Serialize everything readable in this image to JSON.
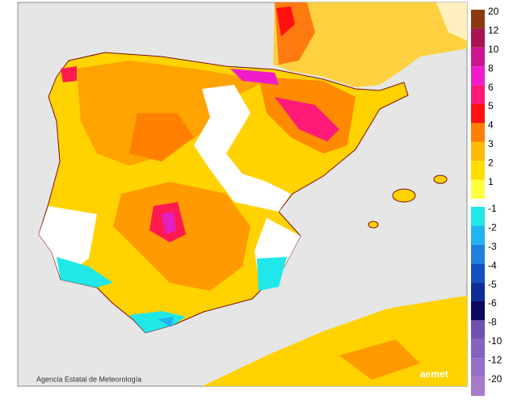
{
  "legend": [
    {
      "value": 20,
      "color": "#8b3a0f"
    },
    {
      "value": 12,
      "color": "#a8124e"
    },
    {
      "value": 10,
      "color": "#cc1490"
    },
    {
      "value": 8,
      "color": "#f01ccc"
    },
    {
      "value": 6,
      "color": "#ff1a78"
    },
    {
      "value": 5,
      "color": "#ff1010"
    },
    {
      "value": 4,
      "color": "#ff8000"
    },
    {
      "value": 3,
      "color": "#ffbb00"
    },
    {
      "value": 2,
      "color": "#ffdd00"
    },
    {
      "value": 1,
      "color": "#ffff40"
    },
    {
      "value": -1,
      "color": "#20e8e8"
    },
    {
      "value": -2,
      "color": "#20b4f0"
    },
    {
      "value": -3,
      "color": "#2080e0"
    },
    {
      "value": -4,
      "color": "#1450c0"
    },
    {
      "value": -5,
      "color": "#0c2e96"
    },
    {
      "value": -6,
      "color": "#0a0a60"
    },
    {
      "value": -8,
      "color": "#7050b0"
    },
    {
      "value": -10,
      "color": "#8462c0"
    },
    {
      "value": -12,
      "color": "#9470c8"
    },
    {
      "value": -20,
      "color": "#a67cc8"
    }
  ],
  "credit": "Agencia Estatal de Meteorología",
  "logo": "aemet"
}
